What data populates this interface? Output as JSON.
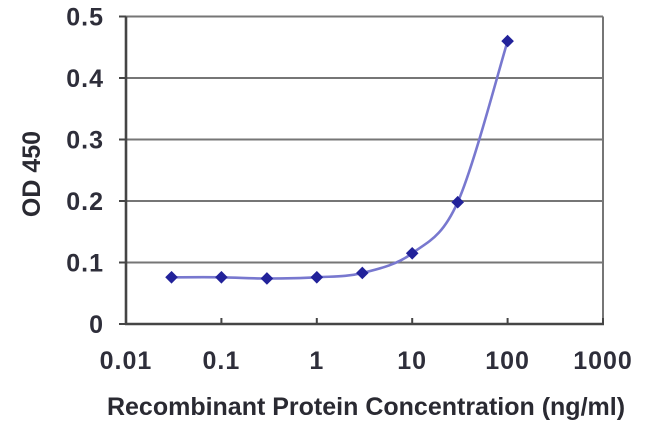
{
  "chart_data": {
    "type": "line",
    "title": "",
    "xlabel": "Recombinant Protein Concentration (ng/ml)",
    "ylabel": "OD 450",
    "x_scale": "log",
    "xlim": [
      0.01,
      1000
    ],
    "ylim": [
      0,
      0.5
    ],
    "x": [
      0.03,
      0.1,
      0.3,
      1,
      3,
      10,
      30,
      100
    ],
    "series": [
      {
        "name": "OD 450",
        "values": [
          0.076,
          0.076,
          0.074,
          0.076,
          0.083,
          0.115,
          0.198,
          0.46
        ]
      }
    ],
    "xticks": {
      "values": [
        0.01,
        0.1,
        1,
        10,
        100,
        1000
      ],
      "labels": [
        "0.01",
        "0.1",
        "1",
        "10",
        "100",
        "1000"
      ]
    },
    "yticks": {
      "values": [
        0,
        0.1,
        0.2,
        0.3,
        0.4,
        0.5
      ],
      "labels": [
        "0",
        "0.1",
        "0.2",
        "0.3",
        "0.4",
        "0.5"
      ]
    },
    "grid": true,
    "legend": "none",
    "marker": "diamond",
    "line_style": "smooth",
    "colors": {
      "line": "#7878cf",
      "marker": "#22229a",
      "grid": "#767676",
      "axis": "#454545",
      "text": "#2e2e3a",
      "background": "#ffffff"
    }
  }
}
